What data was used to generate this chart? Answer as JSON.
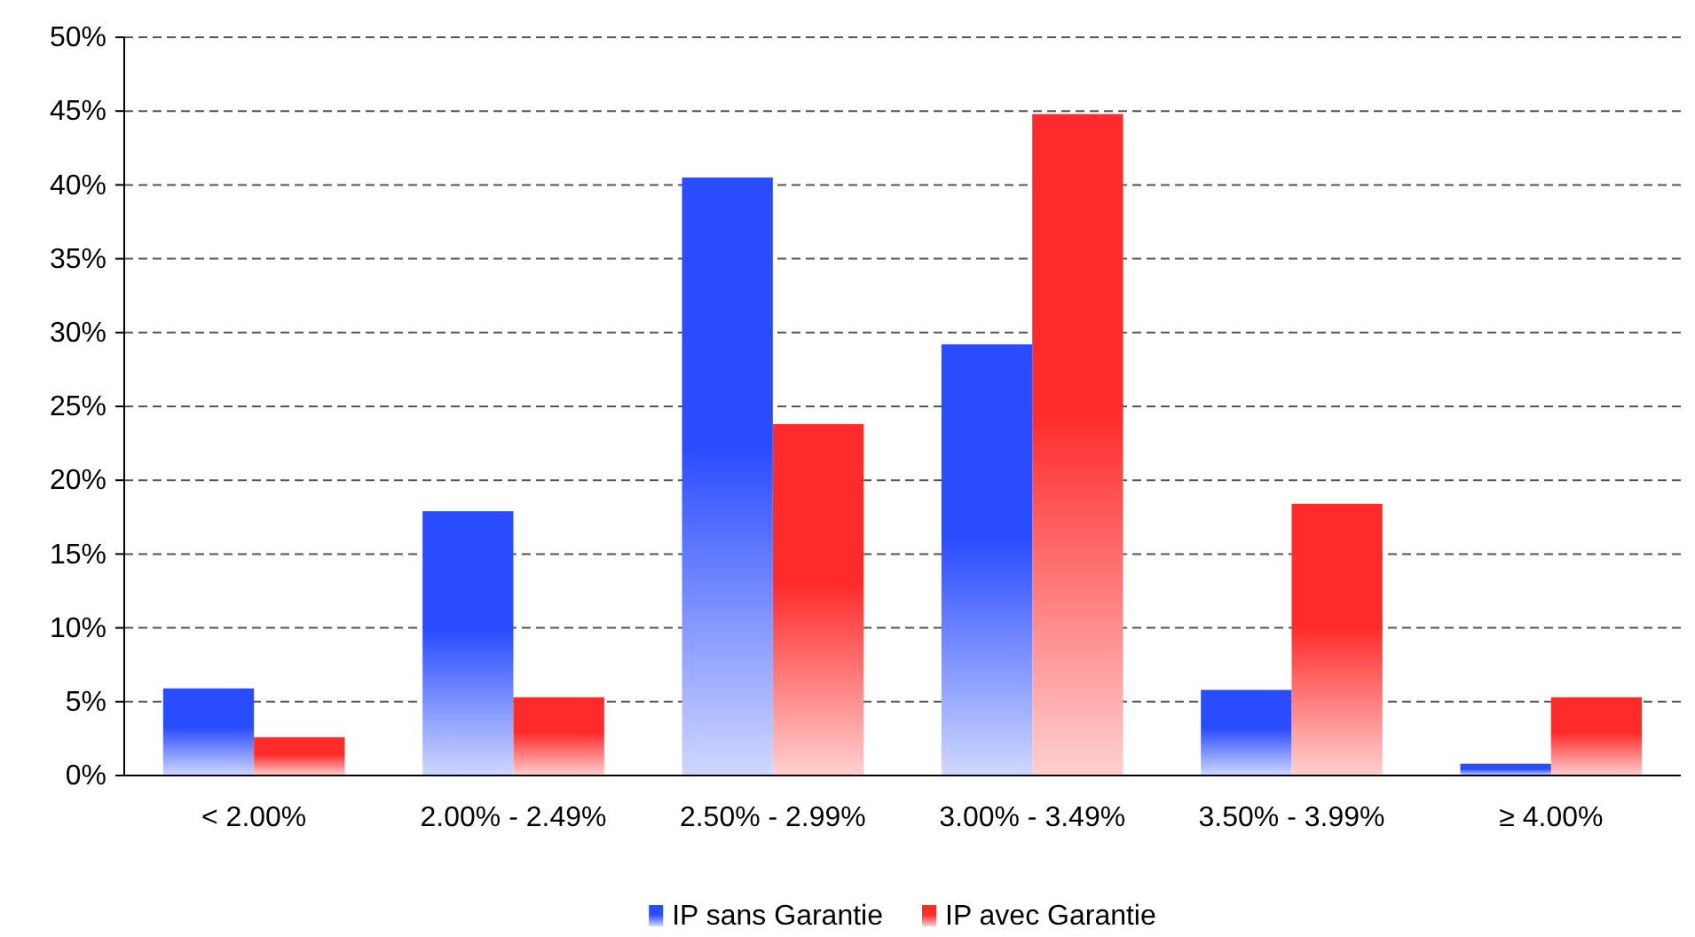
{
  "chart_data": {
    "type": "bar",
    "categories": [
      "< 2.00%",
      "2.00% - 2.49%",
      "2.50% - 2.99%",
      "3.00% - 3.49%",
      "3.50% - 3.99%",
      "≥ 4.00%"
    ],
    "series": [
      {
        "name": "IP sans Garantie",
        "color": "#2a4cff",
        "values": [
          5.9,
          17.9,
          40.5,
          29.2,
          5.8,
          0.8
        ]
      },
      {
        "name": "IP avec Garantie",
        "color": "#ff2a2a",
        "values": [
          2.6,
          5.3,
          23.8,
          44.8,
          18.4,
          5.3
        ]
      }
    ],
    "ylim": [
      0,
      50
    ],
    "yticks": [
      {
        "value": 0,
        "label": "0%"
      },
      {
        "value": 5,
        "label": "5%"
      },
      {
        "value": 10,
        "label": "10%"
      },
      {
        "value": 15,
        "label": "15%"
      },
      {
        "value": 20,
        "label": "20%"
      },
      {
        "value": 25,
        "label": "25%"
      },
      {
        "value": 30,
        "label": "30%"
      },
      {
        "value": 35,
        "label": "35%"
      },
      {
        "value": 40,
        "label": "40%"
      },
      {
        "value": 45,
        "label": "45%"
      },
      {
        "value": 50,
        "label": "50%"
      }
    ],
    "grid": "y",
    "legend": "bottom"
  }
}
